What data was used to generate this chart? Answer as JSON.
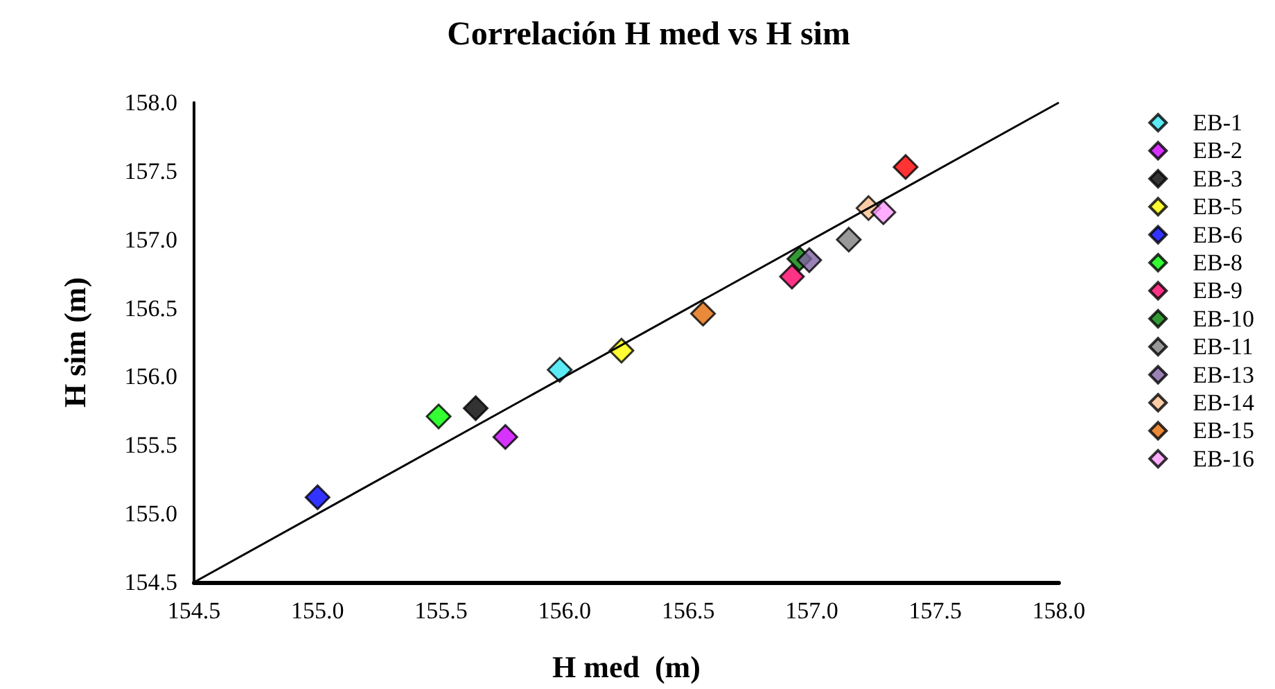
{
  "chart_data": {
    "type": "scatter",
    "title": "Correlación H med vs H sim",
    "xlabel": "H med  (m)",
    "ylabel": "H sim (m)",
    "xlim": [
      154.5,
      158.0
    ],
    "ylim": [
      154.5,
      158.0
    ],
    "xticks": [
      {
        "value": 154.5,
        "label": "154.5"
      },
      {
        "value": 155,
        "label": "155.0"
      },
      {
        "value": 155.5,
        "label": "155.5"
      },
      {
        "value": 156,
        "label": "156.0"
      },
      {
        "value": 156.5,
        "label": "156.5"
      },
      {
        "value": 157,
        "label": "157.0"
      },
      {
        "value": 157.5,
        "label": "157.5"
      },
      {
        "value": 158,
        "label": "158.0"
      }
    ],
    "yticks": [
      {
        "value": 154.5,
        "label": "154.5"
      },
      {
        "value": 155,
        "label": "155.0"
      },
      {
        "value": 155.5,
        "label": "155.5"
      },
      {
        "value": 156,
        "label": "156.0"
      },
      {
        "value": 156.5,
        "label": "156.5"
      },
      {
        "value": 157,
        "label": "157.0"
      },
      {
        "value": 157.5,
        "label": "157.5"
      },
      {
        "value": 158,
        "label": "158.0"
      }
    ],
    "grid": false,
    "legend": "right",
    "marker": "diamond",
    "series": [
      {
        "type": "line",
        "color": "#000000",
        "x": [
          154.5,
          158.0
        ],
        "values": [
          154.5,
          158.0
        ],
        "marker": "none"
      },
      {
        "name": "EB-1",
        "color": "#33e6f2",
        "x": [
          155.98
        ],
        "values": [
          156.05
        ]
      },
      {
        "name": "EB-2",
        "color": "#cc00ff",
        "x": [
          155.76
        ],
        "values": [
          155.56
        ]
      },
      {
        "name": "EB-3",
        "color": "#000000",
        "x": [
          155.64
        ],
        "values": [
          155.77
        ]
      },
      {
        "name": "EB-5",
        "color": "#ffff00",
        "x": [
          156.23
        ],
        "values": [
          156.19
        ]
      },
      {
        "name": "EB-6",
        "color": "#0000ff",
        "x": [
          155.0
        ],
        "values": [
          155.12
        ]
      },
      {
        "name": "EB-8",
        "color": "#00ff00",
        "x": [
          155.49
        ],
        "values": [
          155.71
        ]
      },
      {
        "name": "EB-9",
        "color": "#ff0066",
        "x": [
          156.92
        ],
        "values": [
          156.73
        ]
      },
      {
        "name": "EB-10",
        "color": "#008000",
        "x": [
          156.95
        ],
        "values": [
          156.86
        ]
      },
      {
        "name": "EB-11",
        "color": "#808080",
        "x": [
          157.15
        ],
        "values": [
          157.0
        ]
      },
      {
        "name": "EB-13",
        "color": "#8064a2",
        "x": [
          156.99
        ],
        "values": [
          156.85
        ]
      },
      {
        "name": "EB-14",
        "color": "#fac090",
        "x": [
          157.23
        ],
        "values": [
          157.23
        ]
      },
      {
        "name": "EB-15",
        "color": "#e36c09",
        "x": [
          156.56
        ],
        "values": [
          156.46
        ]
      },
      {
        "name": "EB-16",
        "color": "#ff99ff",
        "x": [
          157.29
        ],
        "values": [
          157.2
        ]
      },
      {
        "color": "#ff0000",
        "x": [
          157.38
        ],
        "values": [
          157.53
        ]
      }
    ]
  }
}
